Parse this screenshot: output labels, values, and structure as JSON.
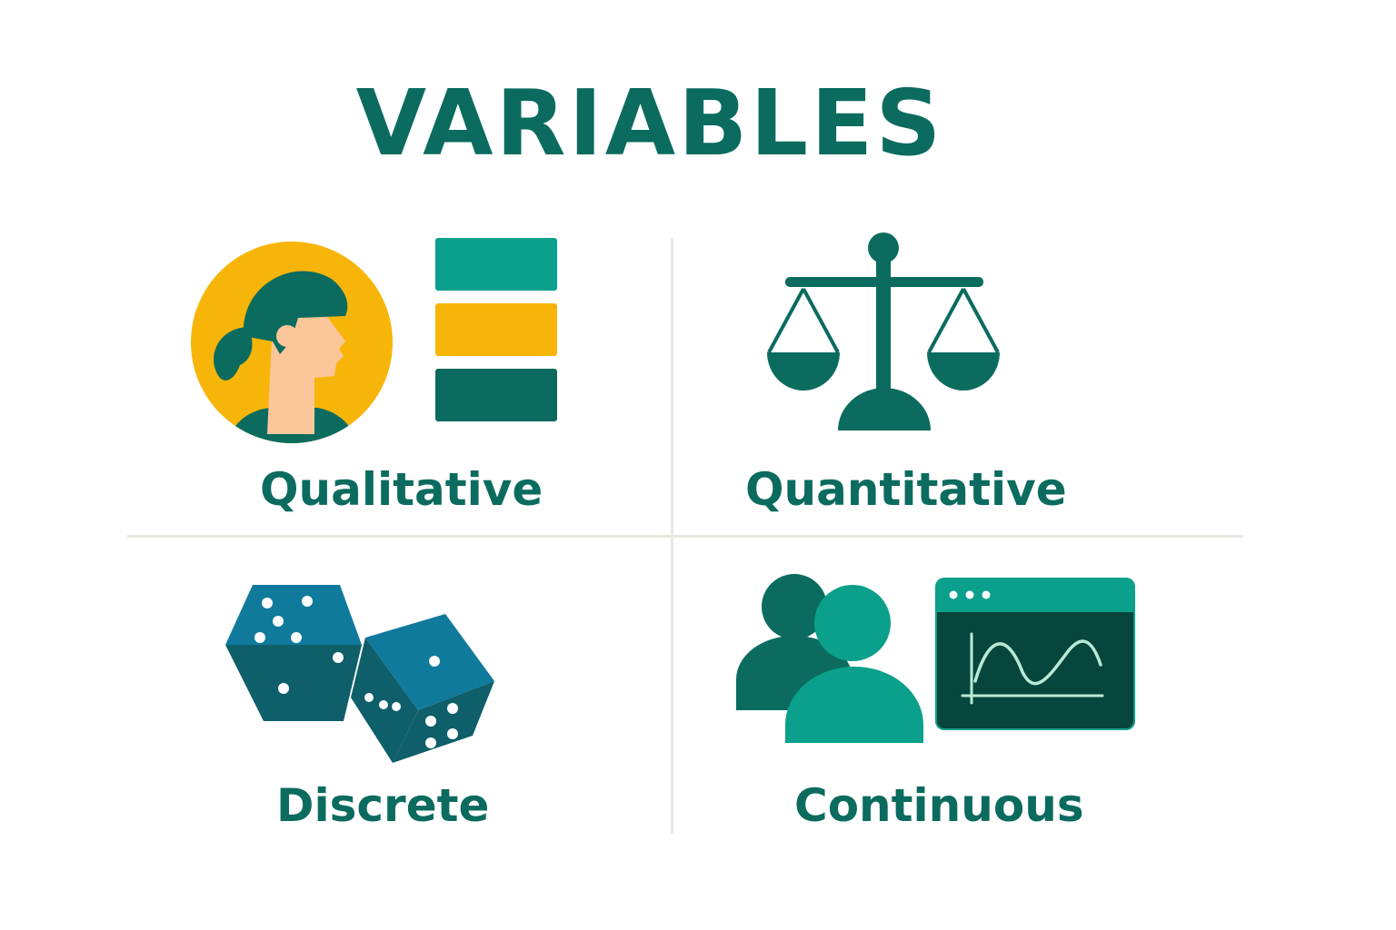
{
  "title": "VARIABLES",
  "quadrants": [
    {
      "label": "Qualitative",
      "icons": [
        "person-profile-icon",
        "stacked-bars-icon"
      ]
    },
    {
      "label": "Quantitative",
      "icons": [
        "balance-scale-icon"
      ]
    },
    {
      "label": "Discrete",
      "icons": [
        "dice-icon"
      ]
    },
    {
      "label": "Continuous",
      "icons": [
        "people-icon",
        "line-graph-window-icon"
      ]
    }
  ],
  "colors": {
    "dark_teal": "#0b6b5f",
    "teal": "#0aa08b",
    "yellow": "#f8b509",
    "skin": "#fbc79a",
    "die_blue": "#107a9c",
    "die_dark": "#0e5f6a",
    "panel_dark": "#07463c",
    "divider": "#e9e8e0"
  }
}
